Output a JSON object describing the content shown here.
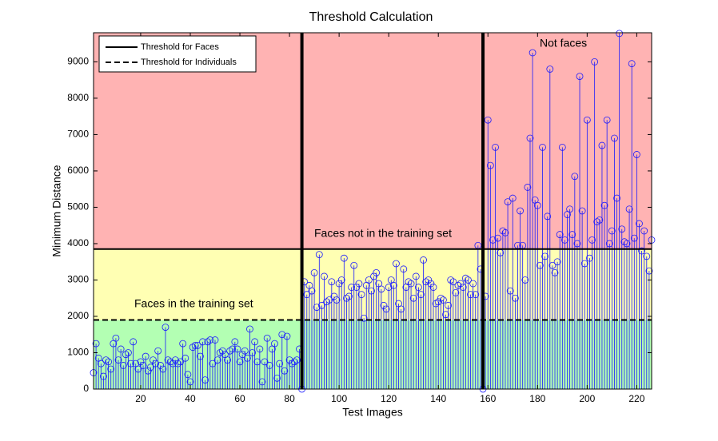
{
  "chart_data": {
    "type": "stem",
    "title": "Threshold Calculation",
    "xlabel": "Test Images",
    "ylabel": "Minimum Distance",
    "xlim": [
      1,
      226
    ],
    "ylim": [
      0,
      9800
    ],
    "xticks": [
      20,
      40,
      60,
      80,
      100,
      120,
      140,
      160,
      180,
      200,
      220
    ],
    "yticks": [
      0,
      1000,
      2000,
      3000,
      4000,
      5000,
      6000,
      7000,
      8000,
      9000
    ],
    "color": "#1a1aff",
    "thresholds": [
      {
        "name": "Threshold for Faces",
        "value": 3850,
        "dash": false
      },
      {
        "name": "Threshold for Individuals",
        "value": 1900,
        "dash": true
      }
    ],
    "boundaries": [
      85,
      158
    ],
    "region_colors": [
      "#b3ffb3",
      "#ffffb3",
      "#ffb3b3"
    ],
    "annotations": [
      "Faces in the training set",
      "Faces not in the training set",
      "Not faces"
    ],
    "legend": "upper left",
    "values": [
      450,
      1250,
      850,
      700,
      350,
      800,
      750,
      550,
      1250,
      1400,
      800,
      1100,
      650,
      950,
      1000,
      700,
      1300,
      700,
      550,
      750,
      650,
      900,
      500,
      600,
      800,
      700,
      1050,
      650,
      550,
      1700,
      800,
      750,
      700,
      800,
      700,
      750,
      1250,
      850,
      400,
      200,
      1150,
      1200,
      1200,
      900,
      1300,
      250,
      1300,
      1350,
      700,
      1350,
      800,
      1000,
      1050,
      950,
      800,
      1050,
      1100,
      1300,
      1100,
      750,
      950,
      1050,
      850,
      1650,
      1000,
      1300,
      750,
      1100,
      200,
      750,
      1400,
      650,
      1100,
      1250,
      300,
      700,
      1500,
      500,
      1450,
      800,
      700,
      750,
      800,
      1100,
      0,
      2950,
      2600,
      2850,
      2700,
      3200,
      2250,
      3700,
      2300,
      3100,
      2400,
      2450,
      2950,
      2550,
      2450,
      2900,
      3000,
      3600,
      2500,
      2550,
      2800,
      3400,
      2800,
      2900,
      2600,
      1950,
      2850,
      3000,
      2700,
      3100,
      3200,
      2900,
      2750,
      2300,
      2200,
      2800,
      3000,
      2850,
      3450,
      2350,
      2200,
      3300,
      2800,
      2950,
      2900,
      2500,
      3100,
      2800,
      2600,
      3550,
      2950,
      3000,
      2900,
      2800,
      2350,
      2400,
      2500,
      2450,
      2050,
      2300,
      3000,
      2950,
      2650,
      2850,
      2900,
      2800,
      3050,
      3000,
      2600,
      2900,
      2600,
      3950,
      3300,
      0,
      2550,
      7400,
      6150,
      4100,
      6650,
      4150,
      3750,
      4350,
      4300,
      5150,
      2700,
      5250,
      2500,
      3950,
      4900,
      3950,
      3000,
      5550,
      6900,
      9250,
      5200,
      5050,
      3400,
      6650,
      3650,
      4750,
      8800,
      3400,
      3200,
      3500,
      4250,
      6650,
      4100,
      4800,
      4950,
      4250,
      5850,
      4000,
      8600,
      4900,
      3450,
      7400,
      3600,
      4100,
      9000,
      4600,
      4650,
      6700,
      5050,
      7400,
      4000,
      4350,
      6900,
      5250,
      9780,
      4400,
      4050,
      4000,
      4950,
      8950,
      4150,
      6450,
      4550,
      3800,
      4350,
      3650,
      3250,
      4100
    ]
  }
}
